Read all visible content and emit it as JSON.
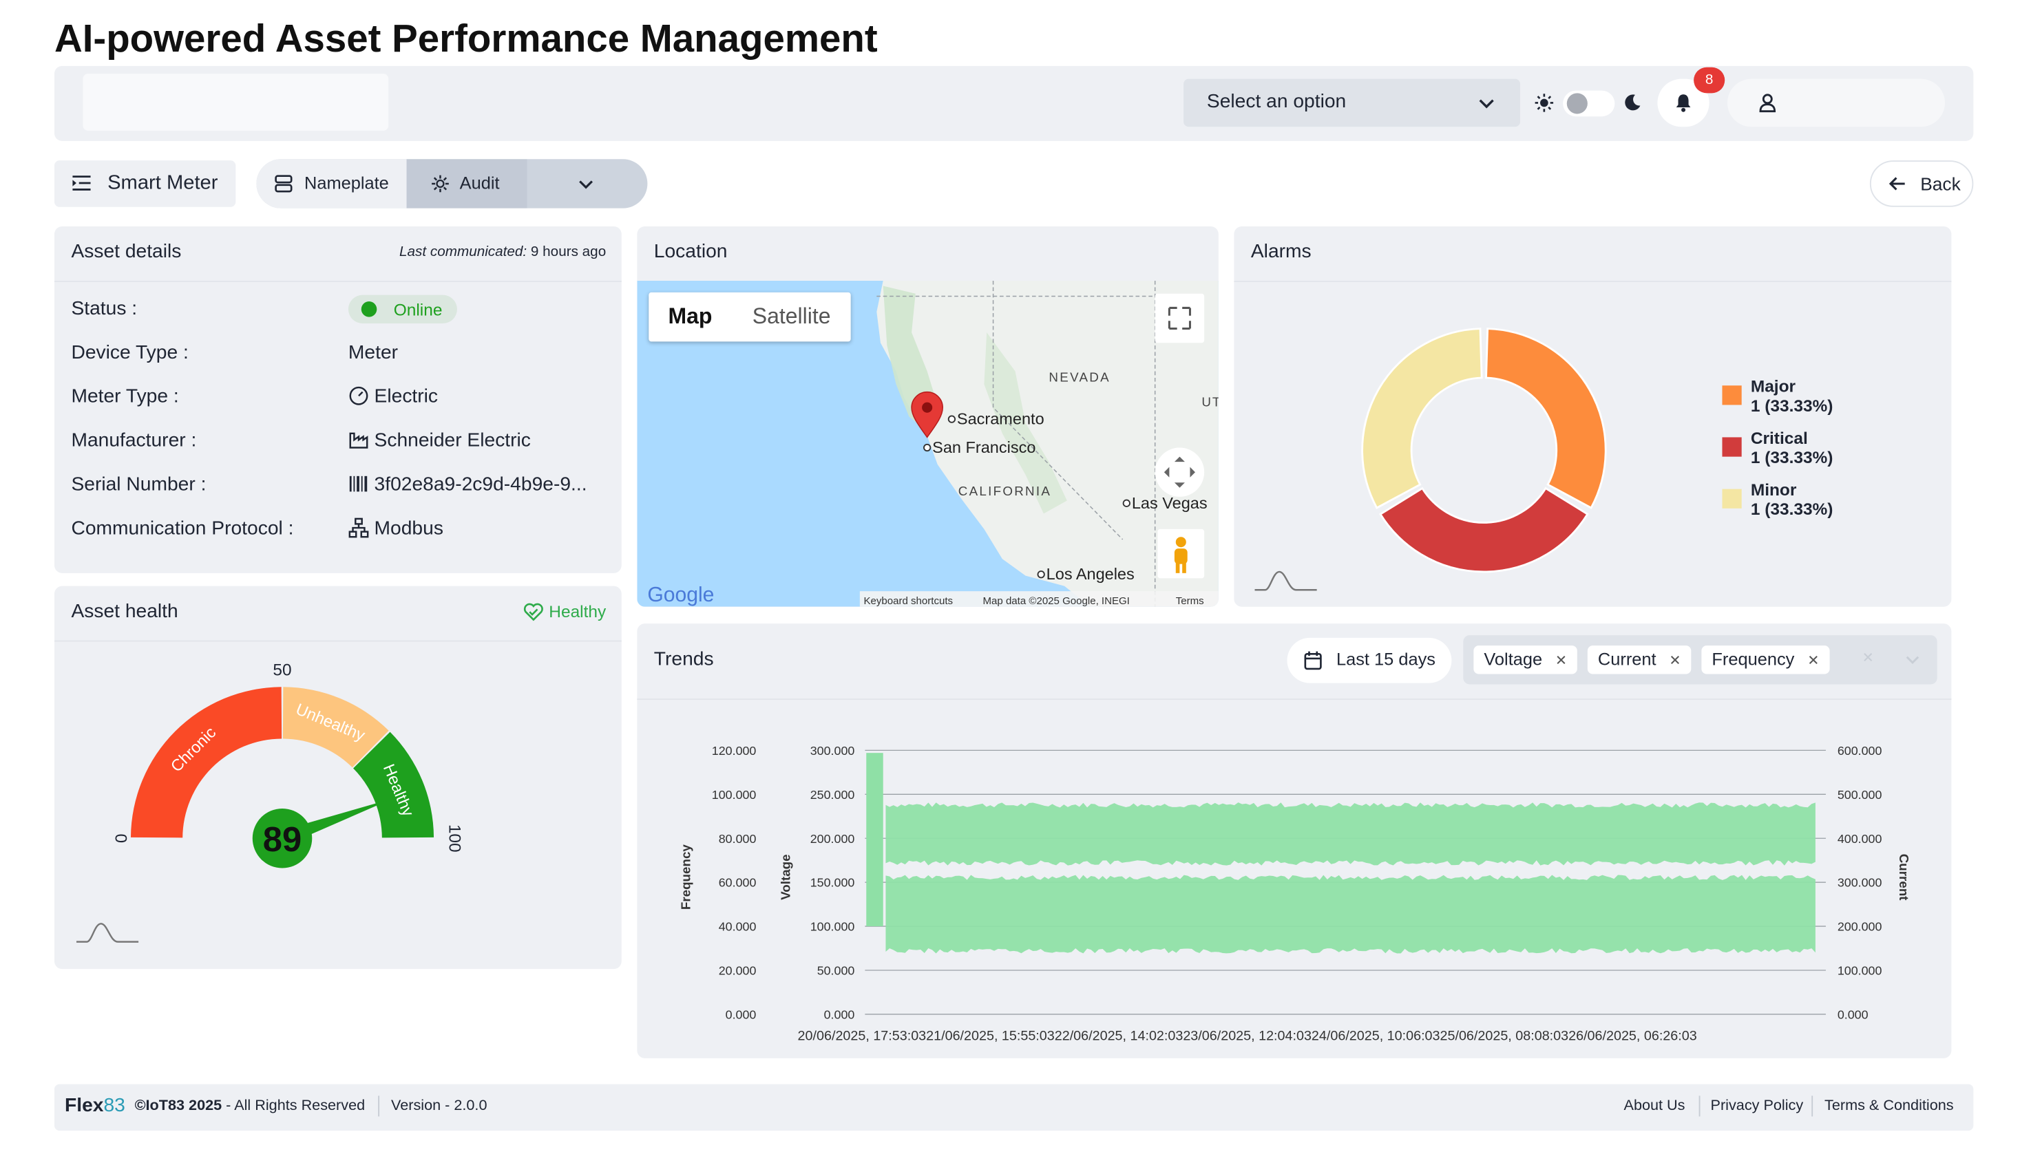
{
  "app": {
    "title": "AI-powered Asset Performance Management"
  },
  "topbar": {
    "select_placeholder": "Select an option",
    "notification_count": "8"
  },
  "asset_nav": {
    "asset_name": "Smart Meter",
    "tabs": [
      {
        "label": "Nameplate"
      },
      {
        "label": "Audit"
      }
    ],
    "back_label": "Back"
  },
  "asset_details": {
    "title": "Asset details",
    "last_communicated_label": "Last communicated:",
    "last_communicated_value": "9 hours ago",
    "status_label": "Status :",
    "status_value": "Online",
    "rows": [
      {
        "label": "Device Type :",
        "value": "Meter",
        "icon": ""
      },
      {
        "label": "Meter Type :",
        "value": "Electric",
        "icon": "gauge-icon"
      },
      {
        "label": "Manufacturer :",
        "value": "Schneider Electric",
        "icon": "factory-icon"
      },
      {
        "label": "Serial Number :",
        "value": "3f02e8a9-2c9d-4b9e-9...",
        "icon": "barcode-icon"
      },
      {
        "label": "Communication Protocol :",
        "value": "Modbus",
        "icon": "network-icon"
      }
    ]
  },
  "location": {
    "title": "Location",
    "map_tabs": [
      "Map",
      "Satellite"
    ],
    "labels": {
      "state1": "NEVADA",
      "state2": "CALIFORNIA",
      "state3": "UT",
      "city1": "Sacramento",
      "city2": "San Francisco",
      "city3": "Las Vegas",
      "city4": "Los Angeles",
      "logo": "Google"
    },
    "attribution": [
      "Keyboard shortcuts",
      "Map data ©2025 Google, INEGI",
      "Terms"
    ]
  },
  "alarms": {
    "title": "Alarms",
    "items": [
      {
        "name": "Major",
        "value": "1 (33.33%)",
        "color": "#fd8c3c",
        "share": 0.3333
      },
      {
        "name": "Critical",
        "value": "1 (33.33%)",
        "color": "#d13c3c",
        "share": 0.3333
      },
      {
        "name": "Minor",
        "value": "1 (33.33%)",
        "color": "#f4e6a3",
        "share": 0.3333
      }
    ]
  },
  "asset_health": {
    "title": "Asset health",
    "status": "Healthy",
    "value": 89,
    "value_text": "89",
    "min_label": "0",
    "mid_label": "50",
    "max_label": "100",
    "bands": [
      {
        "label": "Chronic",
        "from": 0,
        "to": 50,
        "color": "#fa4a26"
      },
      {
        "label": "Unhealthy",
        "from": 50,
        "to": 75,
        "color": "#fdc57e"
      },
      {
        "label": "Healthy",
        "from": 75,
        "to": 100,
        "color": "#1ea01e"
      }
    ]
  },
  "trends": {
    "title": "Trends",
    "date_range": "Last 15 days",
    "tags": [
      "Voltage",
      "Current",
      "Frequency"
    ]
  },
  "chart_data": {
    "type": "area",
    "title": "",
    "x": [
      "20/06/2025, 17:53:03",
      "21/06/2025, 15:55:03",
      "22/06/2025, 14:02:03",
      "23/06/2025, 12:04:03",
      "24/06/2025, 10:06:03",
      "25/06/2025, 08:08:03",
      "26/06/2025, 06:26:03"
    ],
    "x_axis_text": "20/06/2025, 17:53:0321/06/2025, 15:55:0322/06/2025, 14:02:0323/06/2025, 12:04:0324/06/2025, 10:06:0325/06/2025, 08:08:0326/06/2025, 06:26:03",
    "axes": [
      {
        "label": "Frequency",
        "ticks": [
          "0.000",
          "20.000",
          "40.000",
          "60.000",
          "80.000",
          "100.000",
          "120.000"
        ],
        "range": [
          0,
          120
        ]
      },
      {
        "label": "Voltage",
        "ticks": [
          "0.000",
          "50.000",
          "100.000",
          "150.000",
          "200.000",
          "250.000",
          "300.000"
        ],
        "range": [
          0,
          300
        ]
      },
      {
        "label": "Current",
        "ticks": [
          "0.000",
          "100.000",
          "200.000",
          "300.000",
          "400.000",
          "500.000",
          "600.000"
        ],
        "range": [
          0,
          600
        ]
      }
    ],
    "series": [
      {
        "name": "Voltage",
        "axis": "Voltage",
        "band": [
          175,
          235
        ],
        "color": "#8fe0a6"
      },
      {
        "name": "Current",
        "axis": "Current",
        "band": [
          150,
          305
        ],
        "color": "#8fe0a6"
      }
    ],
    "grid": true,
    "legend": "none"
  },
  "footer": {
    "brand_a": "Flex",
    "brand_b": "83",
    "copyright": "©IoT83 2025",
    "rights": " - All Rights Reserved",
    "version": "Version - 2.0.0",
    "links": [
      "About Us",
      "Privacy Policy",
      "Terms & Conditions"
    ]
  },
  "colors": {
    "online": "#1ea01e",
    "healthy": "#2eab4a",
    "badge": "#e53935",
    "card_bg": "#eef0f4",
    "chart_fill": "#8fe0a6"
  }
}
